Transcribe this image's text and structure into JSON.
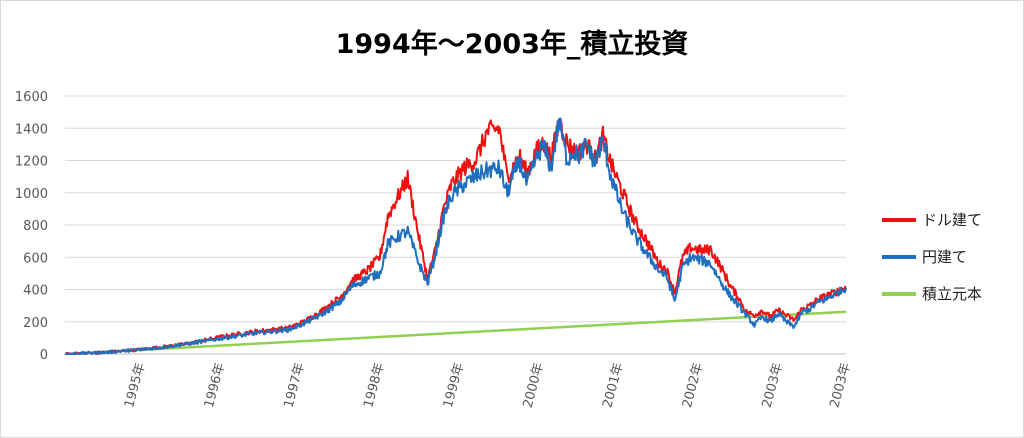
{
  "chart_data": {
    "type": "line",
    "title": "1994年～2003年_積立投資",
    "xlabel": "",
    "ylabel": "",
    "ylim": [
      0,
      1600
    ],
    "yticks": [
      0,
      200,
      400,
      600,
      800,
      1000,
      1200,
      1400,
      1600
    ],
    "xlim": [
      1994.0,
      2003.8
    ],
    "xtick_positions": [
      1995,
      1996,
      1997,
      1998,
      1999,
      2000,
      2001,
      2002,
      2003,
      2003.85
    ],
    "xtick_labels": [
      "1995年",
      "1996年",
      "1997年",
      "1998年",
      "1999年",
      "2000年",
      "2001年",
      "2002年",
      "2003年",
      "2003年"
    ],
    "grid": true,
    "legend": "right",
    "series": [
      {
        "name": "ドル建て",
        "color": "#ee1111",
        "x": [
          1994.0,
          1994.5,
          1995.0,
          1995.5,
          1996.0,
          1996.4,
          1996.8,
          1997.0,
          1997.2,
          1997.45,
          1997.6,
          1997.8,
          1997.95,
          1998.05,
          1998.15,
          1998.3,
          1998.45,
          1998.55,
          1998.65,
          1998.7,
          1998.75,
          1998.85,
          1999.0,
          1999.15,
          1999.3,
          1999.45,
          1999.55,
          1999.7,
          1999.8,
          1999.9,
          2000.0,
          2000.1,
          2000.2,
          2000.3,
          2000.38,
          2000.45,
          2000.55,
          2000.65,
          2000.75,
          2000.85,
          2001.0,
          2001.15,
          2001.3,
          2001.45,
          2001.55,
          2001.65,
          2001.75,
          2001.85,
          2002.0,
          2002.1,
          2002.25,
          2002.35,
          2002.45,
          2002.55,
          2002.65,
          2002.75,
          2002.85,
          2002.95,
          2003.05,
          2003.15,
          2003.25,
          2003.35,
          2003.45,
          2003.55,
          2003.65,
          2003.8
        ],
        "values": [
          0,
          10,
          30,
          60,
          110,
          140,
          160,
          200,
          260,
          350,
          450,
          520,
          600,
          850,
          950,
          1090,
          700,
          470,
          650,
          780,
          900,
          1050,
          1150,
          1200,
          1380,
          1400,
          1100,
          1230,
          1120,
          1250,
          1310,
          1220,
          1440,
          1310,
          1260,
          1250,
          1300,
          1210,
          1350,
          1180,
          1000,
          820,
          700,
          560,
          520,
          380,
          600,
          660,
          640,
          650,
          520,
          420,
          350,
          260,
          240,
          270,
          230,
          270,
          240,
          210,
          280,
          300,
          340,
          360,
          380,
          410
        ]
      },
      {
        "name": "円建て",
        "color": "#1f6fbf",
        "x": [
          1994.0,
          1994.5,
          1995.0,
          1995.5,
          1996.0,
          1996.4,
          1996.8,
          1997.0,
          1997.2,
          1997.45,
          1997.6,
          1997.8,
          1997.95,
          1998.05,
          1998.15,
          1998.3,
          1998.45,
          1998.55,
          1998.65,
          1998.7,
          1998.75,
          1998.85,
          1999.0,
          1999.15,
          1999.3,
          1999.45,
          1999.55,
          1999.7,
          1999.8,
          1999.9,
          2000.0,
          2000.1,
          2000.2,
          2000.3,
          2000.38,
          2000.45,
          2000.55,
          2000.65,
          2000.75,
          2000.85,
          2001.0,
          2001.15,
          2001.3,
          2001.45,
          2001.55,
          2001.65,
          2001.75,
          2001.85,
          2002.0,
          2002.1,
          2002.25,
          2002.35,
          2002.45,
          2002.55,
          2002.65,
          2002.75,
          2002.85,
          2002.95,
          2003.05,
          2003.15,
          2003.25,
          2003.35,
          2003.45,
          2003.55,
          2003.65,
          2003.8
        ],
        "values": [
          0,
          10,
          30,
          60,
          100,
          130,
          150,
          190,
          240,
          320,
          420,
          470,
          500,
          680,
          720,
          760,
          550,
          440,
          620,
          740,
          850,
          980,
          1050,
          1100,
          1140,
          1150,
          1000,
          1200,
          1050,
          1200,
          1300,
          1150,
          1450,
          1200,
          1260,
          1230,
          1300,
          1180,
          1330,
          1100,
          880,
          730,
          620,
          520,
          480,
          330,
          540,
          600,
          580,
          560,
          430,
          360,
          300,
          240,
          180,
          230,
          200,
          250,
          200,
          170,
          260,
          280,
          320,
          340,
          370,
          410
        ]
      },
      {
        "name": "積立元本",
        "color": "#92d050",
        "x": [
          1994.0,
          2003.8
        ],
        "values": [
          0,
          262
        ]
      }
    ]
  }
}
